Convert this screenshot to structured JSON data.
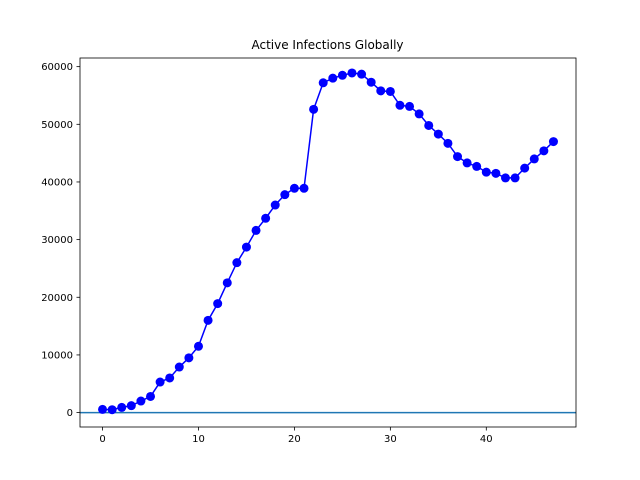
{
  "chart_data": {
    "type": "line",
    "title": "Active Infections Globally",
    "xlabel": "",
    "ylabel": "",
    "xlim": [
      -2.35,
      49.35
    ],
    "ylim": [
      -2500,
      61500
    ],
    "xticks": [
      0,
      10,
      20,
      30,
      40
    ],
    "yticks": [
      0,
      10000,
      20000,
      30000,
      40000,
      50000,
      60000
    ],
    "grid": false,
    "baseline": 0,
    "colors": {
      "series": "#0000ff",
      "baseline": "#1f77b4"
    },
    "series": [
      {
        "x": [
          0,
          1,
          2,
          3,
          4,
          5,
          6,
          7,
          8,
          9,
          10,
          11,
          12,
          13,
          14,
          15,
          16,
          17,
          18,
          19,
          20,
          21,
          22,
          23,
          24,
          25,
          26,
          27,
          28,
          29,
          30,
          31,
          32,
          33,
          34,
          35,
          36,
          37,
          38,
          39,
          40,
          41,
          42,
          43,
          44,
          45,
          46,
          47
        ],
        "values": [
          550,
          500,
          900,
          1200,
          2000,
          2800,
          5300,
          6000,
          7900,
          9500,
          11500,
          16000,
          18900,
          22500,
          26000,
          28700,
          31600,
          33700,
          36000,
          37800,
          38900,
          38900,
          52600,
          57200,
          58000,
          58500,
          58900,
          58700,
          57300,
          55800,
          55700,
          53300,
          53100,
          51800,
          49800,
          48300,
          46700,
          44400,
          43300,
          42700,
          41700,
          41500,
          40700,
          40700,
          42400,
          44000,
          45400,
          47000
        ]
      }
    ]
  }
}
